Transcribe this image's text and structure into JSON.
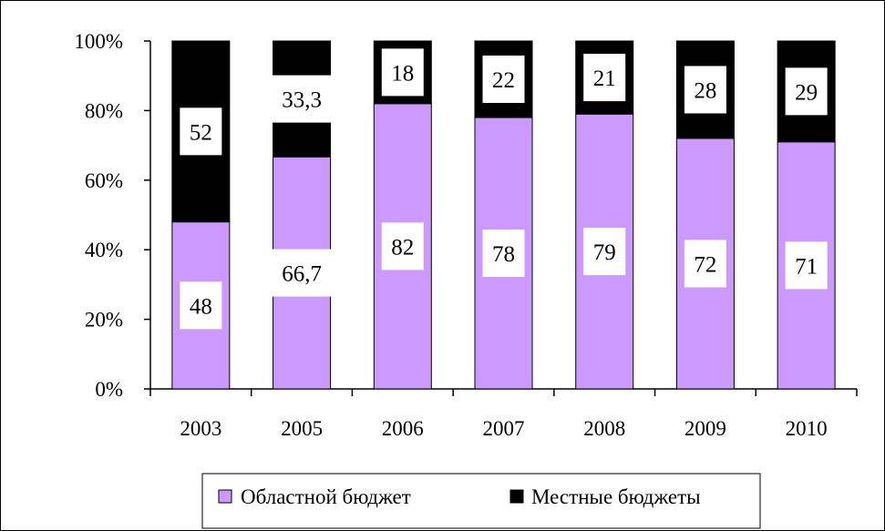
{
  "chart_data": {
    "type": "bar",
    "stacked": true,
    "percent": true,
    "categories": [
      "2003",
      "2005",
      "2006",
      "2007",
      "2008",
      "2009",
      "2010"
    ],
    "series": [
      {
        "name": "Областной бюджет",
        "color": "#cc99ff",
        "values": [
          48,
          66.7,
          82,
          78,
          79,
          72,
          71
        ],
        "labels": [
          "48",
          "66,7",
          "82",
          "78",
          "79",
          "72",
          "71"
        ]
      },
      {
        "name": "Местные бюджеты",
        "color": "#000000",
        "values": [
          52,
          33.3,
          18,
          22,
          21,
          28,
          29
        ],
        "labels": [
          "52",
          "33,3",
          "18",
          "22",
          "21",
          "28",
          "29"
        ]
      }
    ],
    "yticks": [
      "0%",
      "20%",
      "40%",
      "60%",
      "80%",
      "100%"
    ],
    "ylim": [
      0,
      100
    ],
    "grid": false,
    "legend_position": "bottom"
  }
}
